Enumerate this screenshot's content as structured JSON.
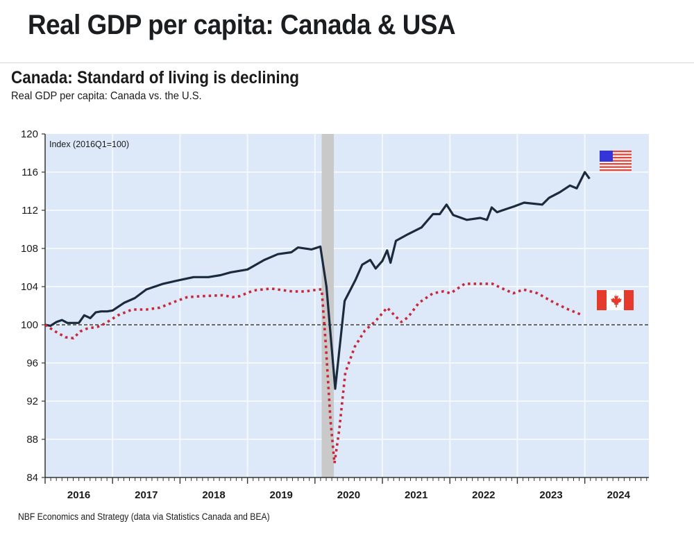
{
  "header": {
    "title": "Real GDP per capita: Canada & USA"
  },
  "chart_data": {
    "type": "line",
    "title": "Canada: Standard of living is declining",
    "subtitle": "Real GDP per capita: Canada vs. the U.S.",
    "annotation": "Index (2016Q1=100)",
    "source": "NBF Economics and Strategy (data via Statistics Canada and BEA)",
    "xlabel": "",
    "ylabel": "",
    "xlim": [
      2016.0,
      2024.95
    ],
    "ylim": [
      84,
      120
    ],
    "yticks": [
      84,
      88,
      92,
      96,
      100,
      104,
      108,
      112,
      116,
      120
    ],
    "xtick_labels": [
      "2016",
      "2017",
      "2018",
      "2019",
      "2020",
      "2021",
      "2022",
      "2023",
      "2024"
    ],
    "grid": true,
    "reference_line": {
      "y": 100,
      "style": "dashed"
    },
    "recession_shade": {
      "from": 2020.1,
      "to": 2020.28
    },
    "legend": [
      {
        "name": "USA",
        "icon": "us-flag-icon",
        "placement": "right, near USA line end"
      },
      {
        "name": "Canada",
        "icon": "canada-flag-icon",
        "placement": "right, near Canada line end"
      }
    ],
    "colors": {
      "usa": "#1b2a3d",
      "canada": "#c8283a",
      "plot_bg": "#dde9f8",
      "shade": "#c9c9c9",
      "grid": "#f4f8fd"
    },
    "series": [
      {
        "name": "USA",
        "style": "solid",
        "x": [
          2016.0,
          2016.08,
          2016.17,
          2016.25,
          2016.33,
          2016.42,
          2016.5,
          2016.58,
          2016.67,
          2016.75,
          2016.83,
          2016.92,
          2017.0,
          2017.17,
          2017.33,
          2017.5,
          2017.75,
          2018.0,
          2018.2,
          2018.42,
          2018.6,
          2018.75,
          2019.0,
          2019.25,
          2019.45,
          2019.65,
          2019.75,
          2019.95,
          2020.08,
          2020.17,
          2020.3,
          2020.44,
          2020.6,
          2020.7,
          2020.82,
          2020.9,
          2021.0,
          2021.07,
          2021.12,
          2021.2,
          2021.38,
          2021.58,
          2021.75,
          2021.85,
          2021.95,
          2022.05,
          2022.25,
          2022.45,
          2022.55,
          2022.62,
          2022.7,
          2022.78,
          2022.95,
          2023.1,
          2023.37,
          2023.47,
          2023.63,
          2023.78,
          2023.88,
          2024.0,
          2024.07
        ],
        "values": [
          100.0,
          99.9,
          100.3,
          100.5,
          100.2,
          100.2,
          100.2,
          101.0,
          100.7,
          101.3,
          101.4,
          101.4,
          101.5,
          102.3,
          102.8,
          103.7,
          104.3,
          104.7,
          105.0,
          105.0,
          105.2,
          105.5,
          105.8,
          106.8,
          107.4,
          107.6,
          108.1,
          107.9,
          108.2,
          104.0,
          93.3,
          102.5,
          104.7,
          106.3,
          106.8,
          105.9,
          106.7,
          107.8,
          106.5,
          108.8,
          109.5,
          110.2,
          111.6,
          111.6,
          112.6,
          111.5,
          111.0,
          111.2,
          111.0,
          112.3,
          111.8,
          112.0,
          112.4,
          112.8,
          112.6,
          113.3,
          113.9,
          114.6,
          114.3,
          116.0,
          115.3
        ]
      },
      {
        "name": "Canada",
        "style": "dotted",
        "x": [
          2016.0,
          2016.15,
          2016.3,
          2016.42,
          2016.52,
          2016.62,
          2016.78,
          2016.88,
          2017.08,
          2017.29,
          2017.5,
          2017.7,
          2017.95,
          2018.11,
          2018.32,
          2018.63,
          2018.78,
          2018.88,
          2019.09,
          2019.35,
          2019.66,
          2019.86,
          2020.05,
          2020.1,
          2020.16,
          2020.23,
          2020.29,
          2020.36,
          2020.45,
          2020.59,
          2020.74,
          2020.9,
          2021.07,
          2021.18,
          2021.28,
          2021.38,
          2021.54,
          2021.75,
          2021.9,
          2022.01,
          2022.22,
          2022.43,
          2022.63,
          2022.78,
          2022.94,
          2023.09,
          2023.3,
          2023.55,
          2023.76,
          2023.97
        ],
        "values": [
          100.0,
          99.3,
          98.7,
          98.6,
          99.3,
          99.6,
          99.8,
          100.1,
          101.0,
          101.6,
          101.6,
          101.8,
          102.5,
          102.9,
          103.0,
          103.1,
          102.9,
          103.0,
          103.6,
          103.8,
          103.5,
          103.5,
          103.7,
          103.7,
          98.0,
          90.0,
          85.5,
          89.0,
          95.0,
          97.7,
          99.4,
          100.4,
          101.8,
          101.0,
          100.3,
          100.8,
          102.3,
          103.3,
          103.5,
          103.3,
          104.3,
          104.3,
          104.3,
          103.8,
          103.3,
          103.7,
          103.3,
          102.3,
          101.6,
          101.0
        ]
      }
    ]
  }
}
